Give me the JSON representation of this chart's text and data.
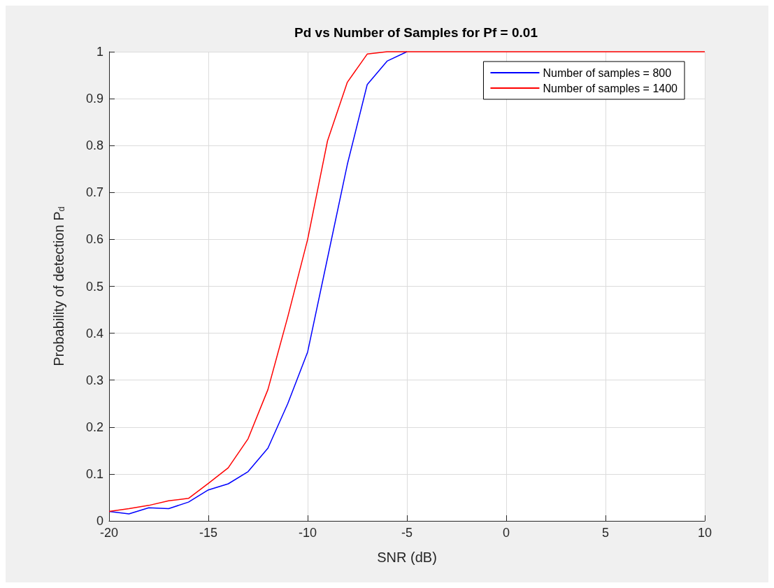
{
  "chart_data": {
    "type": "line",
    "title": "Pd vs Number of Samples for Pf = 0.01",
    "xlabel": "SNR (dB)",
    "ylabel": "Probability of detection P$_{d}$",
    "x": [
      -20,
      -19,
      -18,
      -17,
      -16,
      -15,
      -14,
      -13,
      -12,
      -11,
      -10,
      -9,
      -8,
      -7,
      -6,
      -5,
      -4,
      -3,
      -2,
      -1,
      0,
      1,
      2,
      3,
      4,
      5,
      6,
      7,
      8,
      9,
      10
    ],
    "series": [
      {
        "name": "Number of samples = 800",
        "color": "#0000ff",
        "values": [
          0.02,
          0.015,
          0.028,
          0.026,
          0.04,
          0.066,
          0.079,
          0.105,
          0.155,
          0.25,
          0.36,
          0.56,
          0.76,
          0.93,
          0.98,
          1,
          null,
          null,
          null,
          null,
          null,
          null,
          null,
          null,
          null,
          null,
          null,
          null,
          null,
          null,
          null
        ]
      },
      {
        "name": "Number of samples = 1400",
        "color": "#ff0000",
        "values": [
          0.02,
          0.026,
          0.033,
          0.043,
          0.048,
          0.08,
          0.113,
          0.175,
          0.28,
          0.435,
          0.6,
          0.81,
          0.935,
          0.995,
          1,
          1,
          1,
          1,
          1,
          1,
          1,
          1,
          1,
          1,
          1,
          1,
          1,
          1,
          1,
          1,
          1
        ]
      }
    ],
    "xlim": [
      -20,
      10
    ],
    "xticks": [
      -20,
      -15,
      -10,
      -5,
      0,
      5,
      10
    ],
    "ylim": [
      0,
      1
    ],
    "yticks": [
      0,
      0.1,
      0.2,
      0.3,
      0.4,
      0.5,
      0.6,
      0.7,
      0.8,
      0.9,
      1
    ],
    "grid": true,
    "legend": "top right",
    "marker": "none",
    "line_style": "solid"
  }
}
